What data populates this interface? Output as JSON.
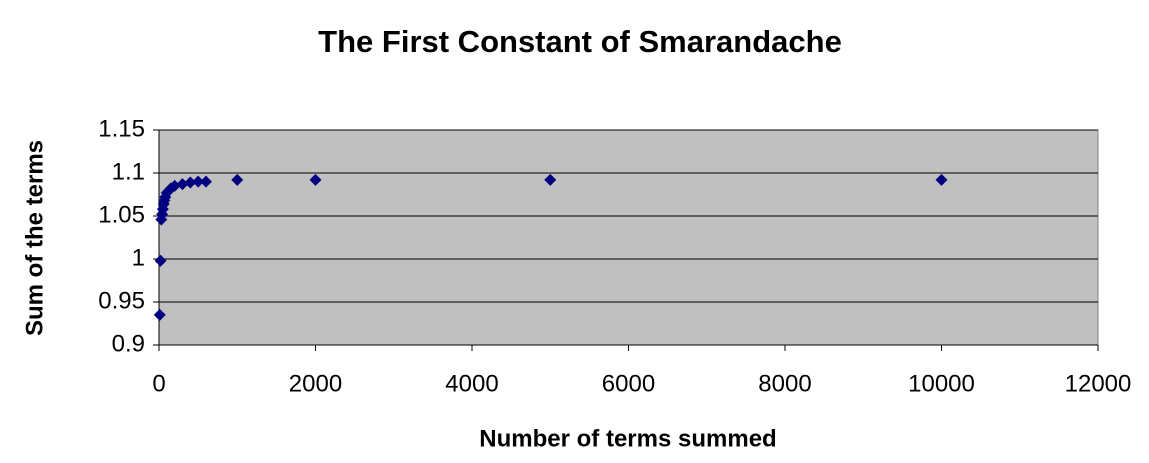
{
  "chart_data": {
    "type": "scatter",
    "title": "The First Constant of Smarandache",
    "x_label": "Number of terms summed",
    "y_label": "Sum of the terms",
    "series": [
      {
        "color": "#000080",
        "x": [
          10,
          20,
          30,
          40,
          50,
          60,
          70,
          80,
          100,
          150,
          200,
          300,
          400,
          500,
          600,
          1000,
          2000,
          5000,
          10000
        ],
        "values": [
          0.935,
          0.998,
          1.046,
          1.052,
          1.058,
          1.064,
          1.068,
          1.072,
          1.077,
          1.082,
          1.085,
          1.087,
          1.089,
          1.09,
          1.09,
          1.092,
          1.092,
          1.092,
          1.092
        ]
      }
    ],
    "xlim": [
      0,
      12000
    ],
    "xticks": [
      0,
      2000,
      4000,
      6000,
      8000,
      10000,
      12000
    ],
    "ylim": [
      0.9,
      1.15
    ],
    "yticks": [
      0.9,
      0.95,
      1,
      1.05,
      1.1,
      1.15
    ],
    "grid": true,
    "plot_background": "#c0c0c0"
  }
}
